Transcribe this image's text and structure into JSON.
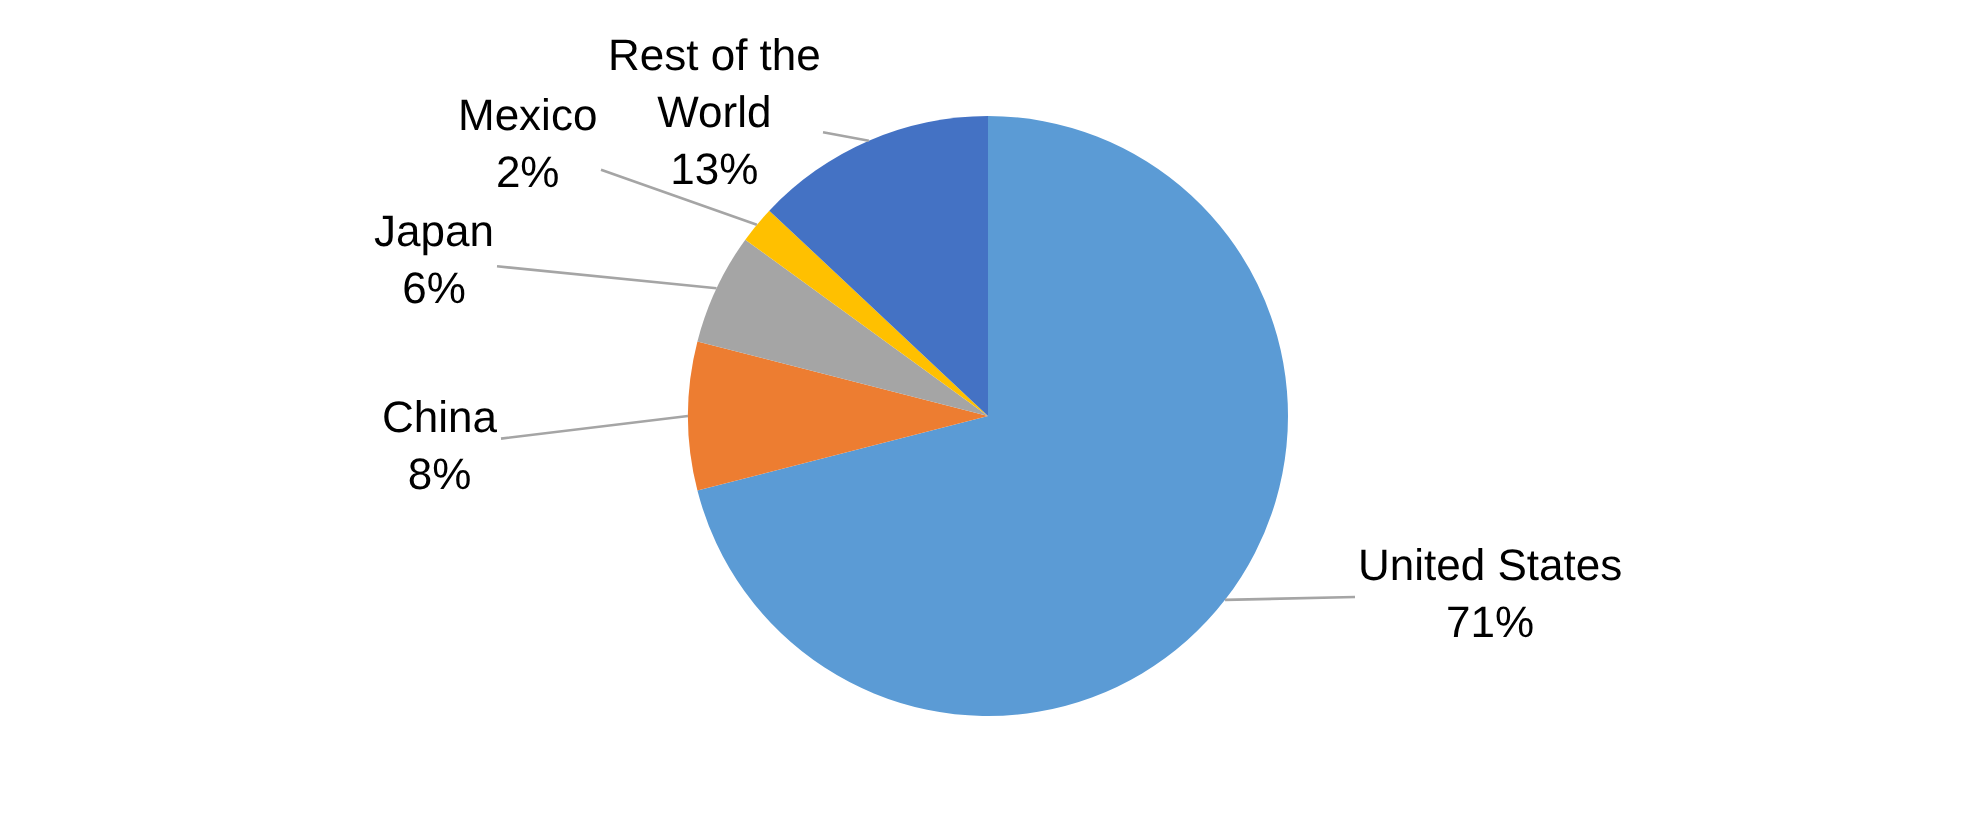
{
  "chart_data": {
    "type": "pie",
    "categories": [
      "United States",
      "China",
      "Japan",
      "Mexico",
      "Rest of the World"
    ],
    "values": [
      71,
      8,
      6,
      2,
      13
    ],
    "colors": [
      "#5b9bd5",
      "#ed7d31",
      "#a5a5a5",
      "#ffc000",
      "#4472c4"
    ],
    "value_labels": [
      "71%",
      "8%",
      "6%",
      "2%",
      "13%"
    ],
    "legend": false
  }
}
